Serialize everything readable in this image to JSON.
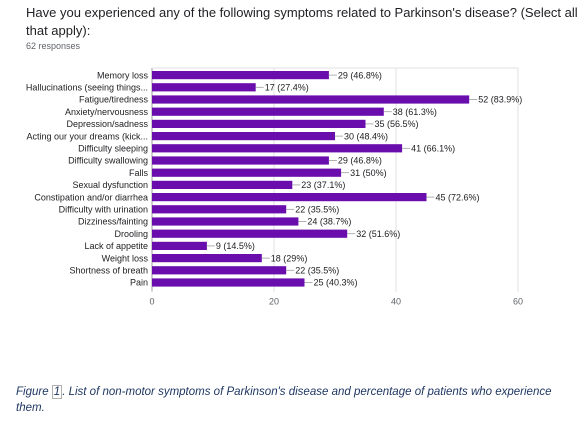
{
  "header": {
    "question": "Have you experienced any of the following symptoms related to Parkinson's disease? (Select all that apply):",
    "responses": "62 responses"
  },
  "caption": {
    "prefix": "Figure ",
    "number": "1",
    "text": ". List of non-motor symptoms of Parkinson's disease and percentage of patients who experience them."
  },
  "colors": {
    "bar": "#6a0dad",
    "grid": "#e0e0e0",
    "axis": "#9e9e9e",
    "text": "#202124",
    "caption": "#1f3763"
  },
  "chart_data": {
    "type": "bar",
    "orientation": "horizontal",
    "categories": [
      "Memory loss",
      "Hallucinations (seeing things...",
      "Fatigue/tiredness",
      "Anxiety/nervousness",
      "Depression/sadness",
      "Acting our your dreams (kick...",
      "Difficulty sleeping",
      "Difficulty swallowing",
      "Falls",
      "Sexual dysfunction",
      "Constipation and/or diarrhea",
      "Difficulty with urination",
      "Dizziness/fainting",
      "Drooling",
      "Lack of appetite",
      "Weight loss",
      "Shortness of breath",
      "Pain"
    ],
    "values": [
      29,
      17,
      52,
      38,
      35,
      30,
      41,
      29,
      31,
      23,
      45,
      22,
      24,
      32,
      9,
      18,
      22,
      25
    ],
    "data_labels": [
      "29 (46.8%)",
      "17 (27.4%)",
      "52 (83.9%)",
      "38 (61.3%)",
      "35 (56.5%)",
      "30 (48.4%)",
      "41 (66.1%)",
      "29 (46.8%)",
      "31 (50%)",
      "23 (37.1%)",
      "45 (72.6%)",
      "22 (35.5%)",
      "24 (38.7%)",
      "32 (51.6%)",
      "9 (14.5%)",
      "18 (29%)",
      "22 (35.5%)",
      "25 (40.3%)"
    ],
    "xticks": [
      "0",
      "20",
      "40",
      "60"
    ],
    "xlim": [
      0,
      60
    ],
    "grid": true,
    "legend": "none"
  }
}
